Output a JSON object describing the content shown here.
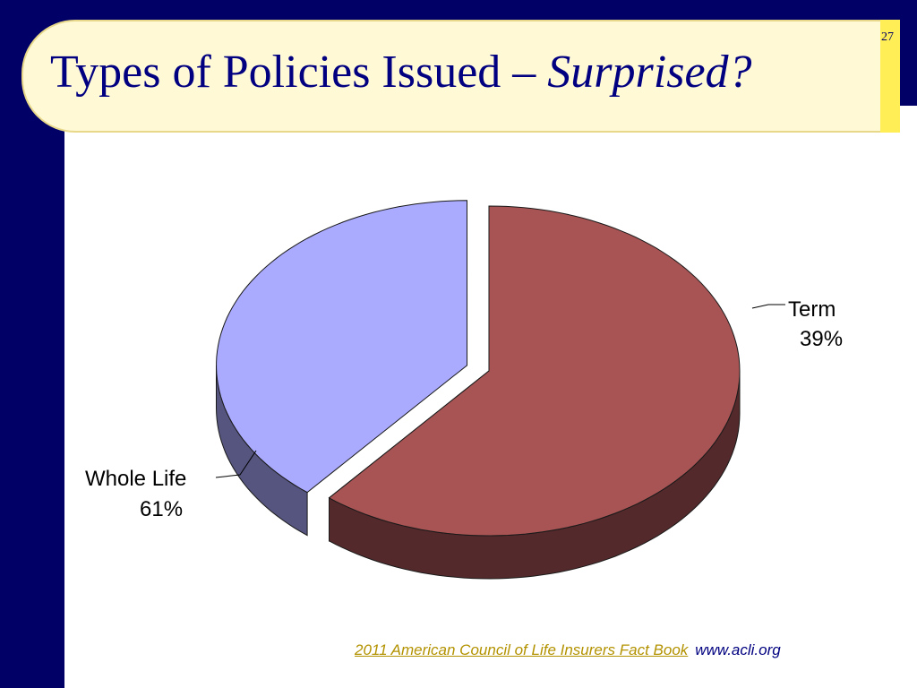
{
  "slide": {
    "title_main": "Types of Policies Issued – ",
    "title_emphasis": "Surprised?",
    "slide_number": "27"
  },
  "source": {
    "link_text": "2011 American Council of Life Insurers Fact Book",
    "url_text": "www.acli.org"
  },
  "chart_data": {
    "type": "pie",
    "title": "",
    "categories": [
      "Whole Life",
      "Term"
    ],
    "values": [
      61,
      39
    ],
    "unit": "%",
    "value_labels": [
      "61%",
      "39%"
    ],
    "colors": {
      "Whole Life": {
        "top": "#a85454",
        "side": "#54292b"
      },
      "Term": {
        "top": "#aaaaff",
        "side": "#55557f"
      }
    },
    "exploded": [
      "Term"
    ],
    "style": "3d-tilted",
    "legend": "none"
  }
}
